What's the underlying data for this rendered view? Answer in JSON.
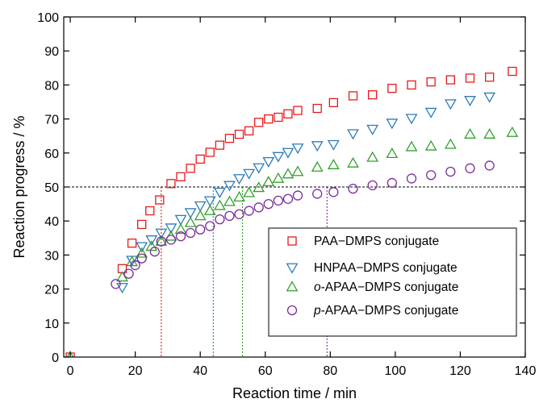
{
  "chart_data": {
    "type": "scatter",
    "xlabel": "Reaction time / min",
    "ylabel": "Reaction progress / %",
    "xlim": [
      -2,
      140
    ],
    "ylim": [
      0,
      100
    ],
    "xticks": [
      0,
      20,
      40,
      60,
      80,
      100,
      120,
      140
    ],
    "yticks": [
      0,
      10,
      20,
      30,
      40,
      50,
      60,
      70,
      80,
      90,
      100
    ],
    "grid": false,
    "legend_position": "bottom-right",
    "reference_line": {
      "y": 50,
      "style": "dashed",
      "color": "#000000"
    },
    "series": [
      {
        "name_prefix": "",
        "name_italic": "",
        "name": "PAA−DMPS conjugate",
        "marker": "square",
        "color": "#e41a1c",
        "half_time": 28,
        "x": [
          0,
          16,
          18,
          22,
          24,
          26,
          28,
          30,
          32,
          34,
          36,
          38,
          40,
          42,
          44,
          46,
          48,
          50,
          52,
          54,
          56,
          58,
          60,
          62,
          64,
          66,
          68,
          70,
          72,
          78,
          82,
          88,
          94,
          100,
          106,
          112,
          118,
          124,
          130,
          136
        ],
        "y": [
          0,
          26,
          28.5,
          39,
          43,
          46,
          51,
          53,
          55.5,
          57.5,
          60.2,
          62,
          64,
          65.5,
          66.5,
          68,
          69.5,
          70.2,
          70.8,
          71.5,
          72.5,
          72.5,
          73.3,
          73.5,
          74.5,
          75.2,
          76,
          76.5,
          78,
          79.5,
          80,
          81,
          81.5,
          82,
          82.3,
          82.5,
          83.2,
          84,
          84.5,
          84.5
        ],
        "x_plot": [
          0,
          16,
          19,
          22,
          24.5,
          27.5,
          31,
          34,
          37,
          40,
          43,
          46,
          49,
          52,
          55,
          58,
          61,
          64,
          67,
          70,
          76,
          81,
          87,
          93,
          99,
          105,
          111,
          117,
          123,
          129,
          136
        ],
        "y_plot": [
          0,
          26,
          33.5,
          39,
          43,
          46.2,
          51,
          53,
          55.5,
          58.2,
          60.2,
          62.3,
          64.3,
          65.5,
          66.5,
          69,
          70,
          70.5,
          71.5,
          72.5,
          73.1,
          74.8,
          76.8,
          77.1,
          79,
          80,
          80.9,
          81.5,
          82,
          82.3,
          84
        ]
      },
      {
        "name_prefix": "",
        "name_italic": "",
        "name": "HNPAA−DMPS conjugate",
        "marker": "triangle-down",
        "color": "#2b7bb9",
        "half_time": 44,
        "x_plot": [
          16,
          19,
          22,
          25,
          28,
          31,
          34,
          37,
          40,
          43,
          46,
          49,
          52,
          55,
          58,
          61,
          64,
          67,
          70,
          76,
          81,
          87,
          93,
          99,
          105,
          111,
          117,
          123,
          129
        ],
        "y_plot": [
          20.5,
          28.5,
          32.5,
          34.5,
          36.5,
          38,
          40.5,
          42.5,
          44.5,
          46,
          48.5,
          50.5,
          52.5,
          54,
          55.7,
          57.5,
          59,
          60.2,
          61.5,
          62.2,
          62.5,
          65.7,
          67,
          68.8,
          70.2,
          72,
          74.5,
          75.5,
          76.5
        ]
      },
      {
        "name_prefix": "",
        "name_italic": "o",
        "name": "-APAA−DMPS conjugate",
        "marker": "triangle-up",
        "color": "#33a02c",
        "half_time": 53,
        "x_plot": [
          0,
          16,
          19,
          22,
          25,
          28,
          31,
          34,
          37,
          40,
          43,
          46,
          49,
          52,
          55,
          58,
          61,
          64,
          67,
          70,
          76,
          81,
          87,
          93,
          99,
          105,
          111,
          117,
          123,
          129,
          136
        ],
        "y_plot": [
          0,
          23.5,
          28,
          30.5,
          32.5,
          34,
          35.5,
          37.5,
          39.5,
          41.5,
          43,
          44.5,
          45.7,
          47,
          48.3,
          49.8,
          51.5,
          52.5,
          53.8,
          54.5,
          55.8,
          56.5,
          57,
          58.7,
          59.8,
          61.8,
          62,
          62.5,
          65.5,
          65.5,
          66
        ]
      },
      {
        "name_prefix": "",
        "name_italic": "p",
        "name": "-APAA−DMPS conjugate",
        "marker": "circle",
        "color": "#7b2c9e",
        "half_time": 79,
        "x_plot": [
          14,
          18,
          20,
          22,
          26,
          28,
          31,
          34,
          37,
          40,
          43,
          46,
          49,
          52,
          55,
          58,
          61,
          64,
          67,
          70,
          76,
          81,
          87,
          93,
          99,
          105,
          111,
          117,
          123,
          129
        ],
        "y_plot": [
          21.5,
          24.5,
          27,
          29,
          31,
          34,
          34.5,
          35.5,
          36.5,
          37.5,
          38.5,
          40.5,
          41.5,
          42,
          43,
          44,
          45,
          46,
          46.5,
          47.5,
          48,
          48.5,
          49.5,
          50.5,
          51.2,
          52.5,
          53.5,
          54.5,
          55.5,
          56.3
        ]
      }
    ]
  }
}
